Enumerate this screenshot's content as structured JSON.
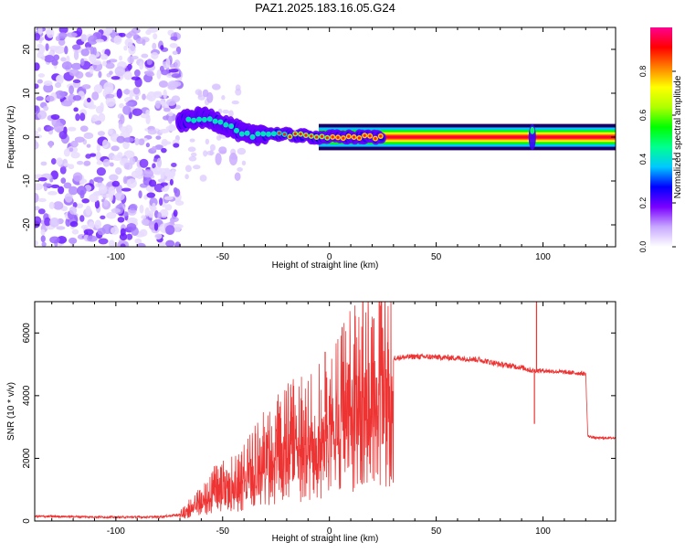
{
  "title": "PAZ1.2025.183.16.05.G24",
  "chart_data": [
    {
      "type": "heatmap",
      "title": "PAZ1.2025.183.16.05.G24",
      "xlabel": "Height of straight line (km)",
      "ylabel": "Frequency (Hz)",
      "xlim": [
        -138,
        134
      ],
      "ylim": [
        -25,
        25
      ],
      "xticks": [
        -100,
        -50,
        0,
        50,
        100
      ],
      "yticks": [
        -20,
        -10,
        0,
        10,
        20
      ],
      "colorbar": {
        "label": "Normalized spectral amplitude",
        "range": [
          0,
          1
        ],
        "ticks": [
          0.0,
          0.2,
          0.4,
          0.6,
          0.8
        ],
        "tick_labels": [
          "0.0",
          "0.2",
          "0.4",
          "0.6",
          "0.8"
        ],
        "colors": [
          "#ffffff",
          "#c8a8ff",
          "#7a00ff",
          "#0000ff",
          "#00c8ff",
          "#00ff90",
          "#00ff00",
          "#b0ff00",
          "#ffff00",
          "#ff8000",
          "#ff0000",
          "#ff0090"
        ]
      },
      "ridge": {
        "x": [
          -70,
          -65,
          -60,
          -55,
          -50,
          -45,
          -40,
          -35,
          -30,
          -25,
          -20,
          -15,
          -10,
          -5,
          0,
          20,
          50,
          94,
          96,
          134
        ],
        "y": [
          3.5,
          4,
          4.5,
          4,
          3,
          2,
          0.8,
          0.2,
          1,
          0.7,
          0.5,
          0.4,
          0.1,
          0,
          0,
          0,
          0,
          0,
          0,
          0
        ]
      },
      "noise_region": {
        "x": [
          -138,
          -70
        ],
        "y": [
          -25,
          25
        ]
      }
    },
    {
      "type": "line",
      "xlabel": "Height of straight line (km)",
      "ylabel": "SNR (10 * v/v)",
      "xlim": [
        -138,
        134
      ],
      "ylim": [
        0,
        7000
      ],
      "xticks": [
        -100,
        -50,
        0,
        50,
        100
      ],
      "yticks": [
        0,
        2000,
        4000,
        6000
      ],
      "series": [
        {
          "color": "#ee3333",
          "x": [
            -138,
            -120,
            -100,
            -80,
            -70,
            -65,
            -60,
            -55,
            -50,
            -45,
            -40,
            -35,
            -30,
            -25,
            -20,
            -15,
            -10,
            -5,
            0,
            5,
            10,
            15,
            20,
            25,
            30,
            40,
            50,
            60,
            70,
            80,
            90,
            95,
            97,
            100,
            110,
            120,
            121,
            125,
            134
          ],
          "y": [
            150,
            140,
            120,
            130,
            200,
            500,
            800,
            1100,
            1300,
            1400,
            1600,
            2000,
            2300,
            2600,
            2900,
            3000,
            3100,
            3300,
            3600,
            4000,
            4400,
            4800,
            5000,
            5150,
            5200,
            5250,
            5230,
            5200,
            5150,
            5000,
            4900,
            4800,
            4800,
            4800,
            4750,
            4700,
            2700,
            2650,
            2650
          ]
        }
      ],
      "spikes": [
        {
          "x": -2,
          "y": 5400
        },
        {
          "x": 97,
          "y": 7000
        },
        {
          "x": 96,
          "y": 3100
        }
      ]
    }
  ]
}
